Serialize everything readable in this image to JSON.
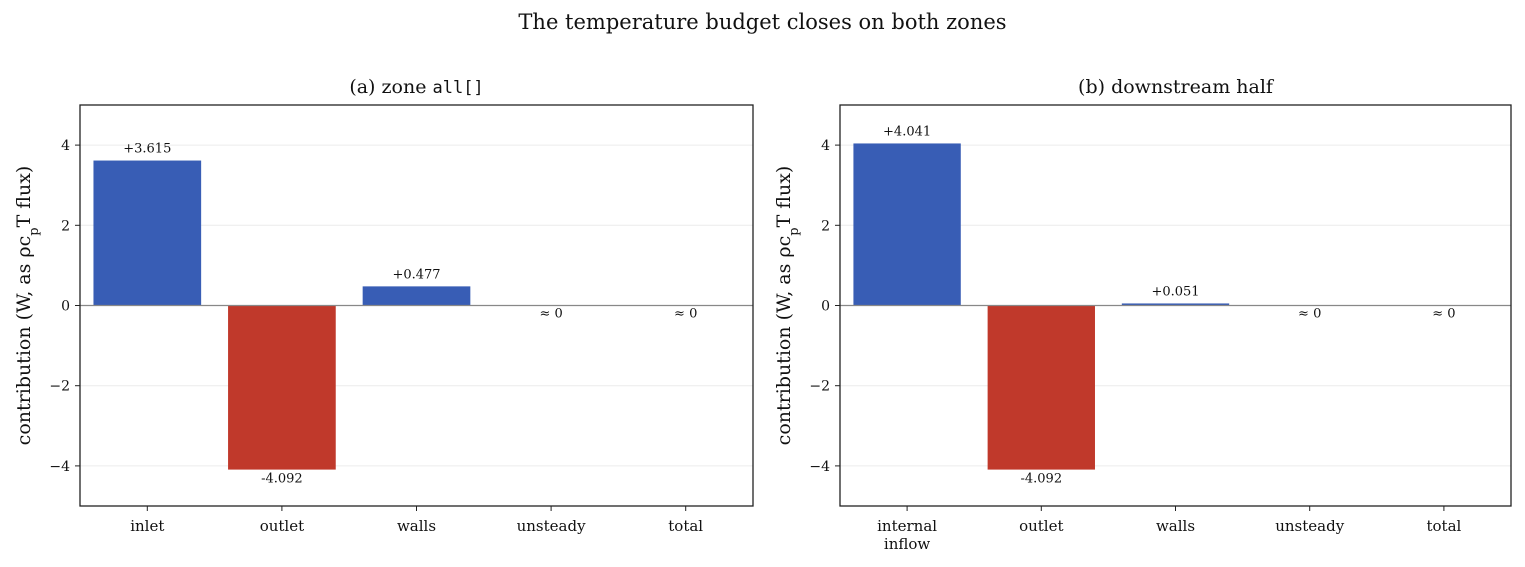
{
  "figure": {
    "title": "The temperature budget closes on both zones"
  },
  "colors": {
    "positive": "#385db5",
    "negative": "#c0392b",
    "zero_line": "#888888",
    "grid": "#ececec",
    "frame": "#222222"
  },
  "chart_data": [
    {
      "type": "bar",
      "title_prefix": "(a) zone ",
      "title_code": "all[]",
      "ylabel": "contribution (W, as ρc",
      "ylabel_sub": "p",
      "ylabel_suffix": "T flux)",
      "ylim": [
        -5,
        5
      ],
      "yticks": [
        -4,
        -2,
        0,
        2,
        4
      ],
      "ytick_labels": [
        "−4",
        "−2",
        "0",
        "2",
        "4"
      ],
      "grid": true,
      "categories": [
        [
          "inlet"
        ],
        [
          "outlet"
        ],
        [
          "walls"
        ],
        [
          "unsteady"
        ],
        [
          "total"
        ]
      ],
      "values": [
        3.615,
        -4.092,
        0.477,
        0,
        0
      ],
      "data_labels": [
        "+3.615",
        "-4.092",
        "+0.477",
        "≈ 0",
        "≈ 0"
      ]
    },
    {
      "type": "bar",
      "title_prefix": "(b) downstream half",
      "title_code": "",
      "ylabel": "contribution (W, as ρc",
      "ylabel_sub": "p",
      "ylabel_suffix": "T flux)",
      "ylim": [
        -5,
        5
      ],
      "yticks": [
        -4,
        -2,
        0,
        2,
        4
      ],
      "ytick_labels": [
        "−4",
        "−2",
        "0",
        "2",
        "4"
      ],
      "grid": true,
      "categories": [
        [
          "internal",
          "inflow"
        ],
        [
          "outlet"
        ],
        [
          "walls"
        ],
        [
          "unsteady"
        ],
        [
          "total"
        ]
      ],
      "values": [
        4.041,
        -4.092,
        0.051,
        0,
        0
      ],
      "data_labels": [
        "+4.041",
        "-4.092",
        "+0.051",
        "≈ 0",
        "≈ 0"
      ]
    }
  ]
}
